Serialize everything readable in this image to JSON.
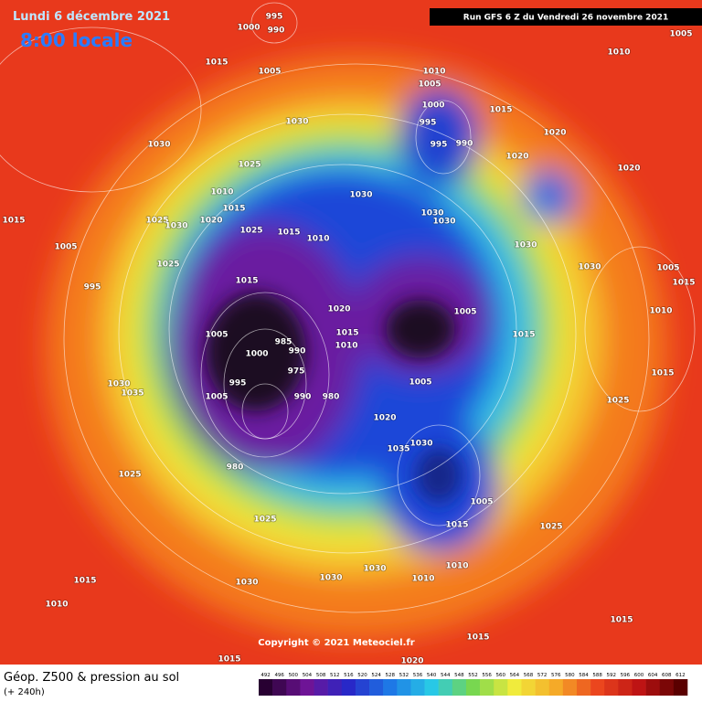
{
  "header": {
    "date": "Lundi 6 décembre 2021",
    "time": "8:00 locale",
    "run": "Run GFS 6 Z du Vendredi 26 novembre 2021"
  },
  "map": {
    "pressure_labels": [
      995,
      990,
      1000,
      1015,
      1005,
      1030,
      1030,
      1025,
      1010,
      1005,
      1000,
      995,
      995,
      990,
      1015,
      1020,
      1020,
      1020,
      1010,
      1005,
      1030,
      1030,
      1030,
      1030,
      1030,
      1015,
      1005,
      1025,
      1030,
      1020,
      1010,
      1015,
      1025,
      1015,
      1010,
      1025,
      995,
      1015,
      1020,
      1005,
      1015,
      1005,
      1000,
      985,
      990,
      975,
      995,
      990,
      980,
      1005,
      1020,
      1035,
      1030,
      980,
      1025,
      1025,
      1015,
      1025,
      1030,
      1010,
      1010,
      1015,
      1030,
      1010,
      1015,
      1015,
      1015,
      1020,
      1015,
      1025,
      1005,
      1015,
      1010,
      1030,
      1030,
      1035,
      1005,
      1010,
      1015,
      1005
    ],
    "copyright": "Copyright © 2021 Meteociel.fr"
  },
  "legend": {
    "title": "Géop. Z500 & pression au sol",
    "subtitle": "(+ 240h)",
    "scale": [
      492,
      496,
      500,
      504,
      508,
      512,
      516,
      520,
      524,
      528,
      532,
      536,
      540,
      544,
      548,
      552,
      556,
      560,
      564,
      568,
      572,
      576,
      580,
      584,
      588,
      592,
      596,
      600,
      604,
      608,
      612
    ]
  }
}
